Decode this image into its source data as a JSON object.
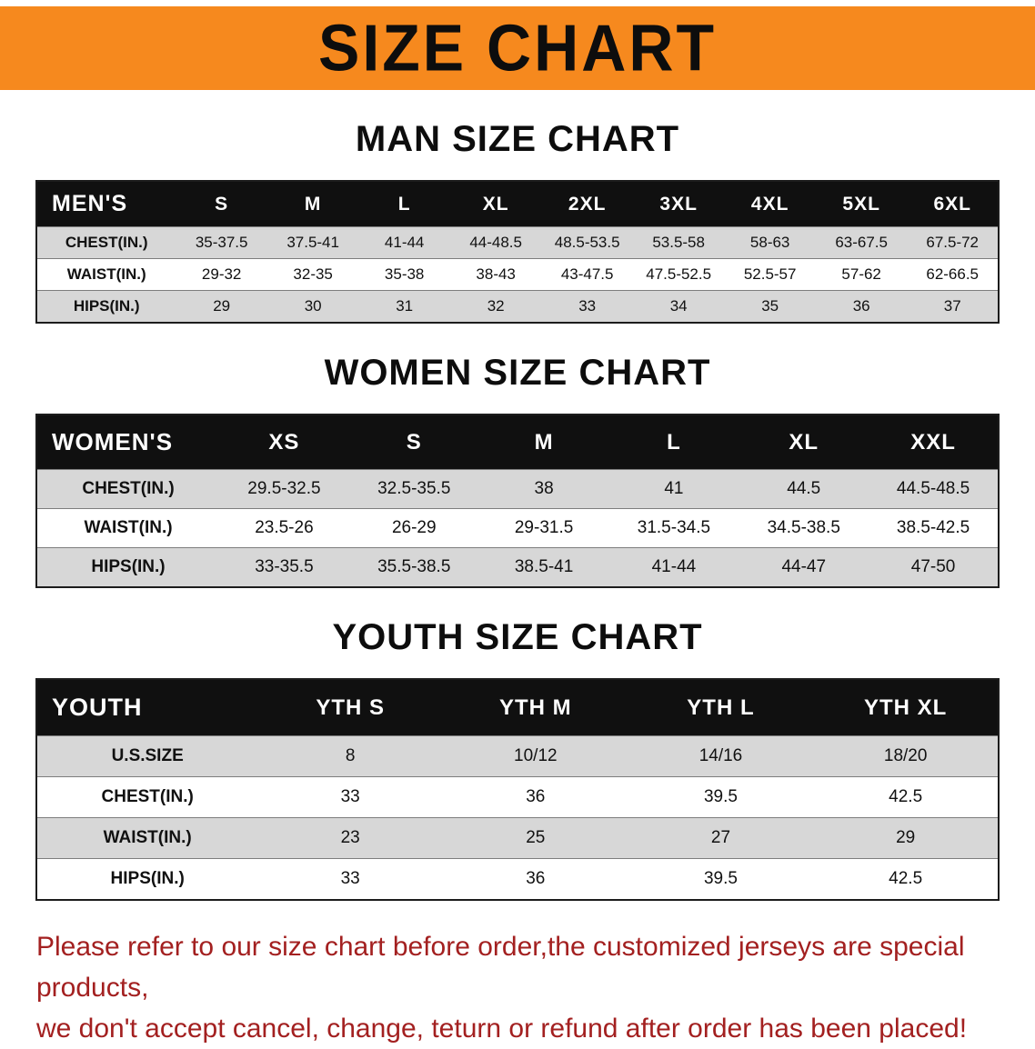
{
  "banner": {
    "title": "SIZE CHART",
    "background_color": "#f6891e"
  },
  "sections": [
    {
      "id": "men",
      "heading": "MAN SIZE CHART",
      "table": {
        "header": [
          "MEN'S",
          "S",
          "M",
          "L",
          "XL",
          "2XL",
          "3XL",
          "4XL",
          "5XL",
          "6XL"
        ],
        "rows": [
          [
            "CHEST(IN.)",
            "35-37.5",
            "37.5-41",
            "41-44",
            "44-48.5",
            "48.5-53.5",
            "53.5-58",
            "58-63",
            "63-67.5",
            "67.5-72"
          ],
          [
            "WAIST(IN.)",
            "29-32",
            "32-35",
            "35-38",
            "38-43",
            "43-47.5",
            "47.5-52.5",
            "52.5-57",
            "57-62",
            "62-66.5"
          ],
          [
            "HIPS(IN.)",
            "29",
            "30",
            "31",
            "32",
            "33",
            "34",
            "35",
            "36",
            "37"
          ]
        ]
      }
    },
    {
      "id": "women",
      "heading": "WOMEN SIZE CHART",
      "table": {
        "header": [
          "WOMEN'S",
          "XS",
          "S",
          "M",
          "L",
          "XL",
          "XXL"
        ],
        "rows": [
          [
            "CHEST(IN.)",
            "29.5-32.5",
            "32.5-35.5",
            "38",
            "41",
            "44.5",
            "44.5-48.5"
          ],
          [
            "WAIST(IN.)",
            "23.5-26",
            "26-29",
            "29-31.5",
            "31.5-34.5",
            "34.5-38.5",
            "38.5-42.5"
          ],
          [
            "HIPS(IN.)",
            "33-35.5",
            "35.5-38.5",
            "38.5-41",
            "41-44",
            "44-47",
            "47-50"
          ]
        ]
      }
    },
    {
      "id": "youth",
      "heading": "YOUTH SIZE CHART",
      "table": {
        "header": [
          "YOUTH",
          "YTH S",
          "YTH M",
          "YTH L",
          "YTH XL"
        ],
        "rows": [
          [
            "U.S.SIZE",
            "8",
            "10/12",
            "14/16",
            "18/20"
          ],
          [
            "CHEST(IN.)",
            "33",
            "36",
            "39.5",
            "42.5"
          ],
          [
            "WAIST(IN.)",
            "23",
            "25",
            "27",
            "29"
          ],
          [
            "HIPS(IN.)",
            "33",
            "36",
            "39.5",
            "42.5"
          ]
        ]
      }
    }
  ],
  "disclaimer": {
    "text_color": "#a32020",
    "line1": "Please refer to our size chart before order,the customized jerseys are special products,",
    "line2": "we don't accept cancel, change, teturn or refund after order has been placed!"
  }
}
